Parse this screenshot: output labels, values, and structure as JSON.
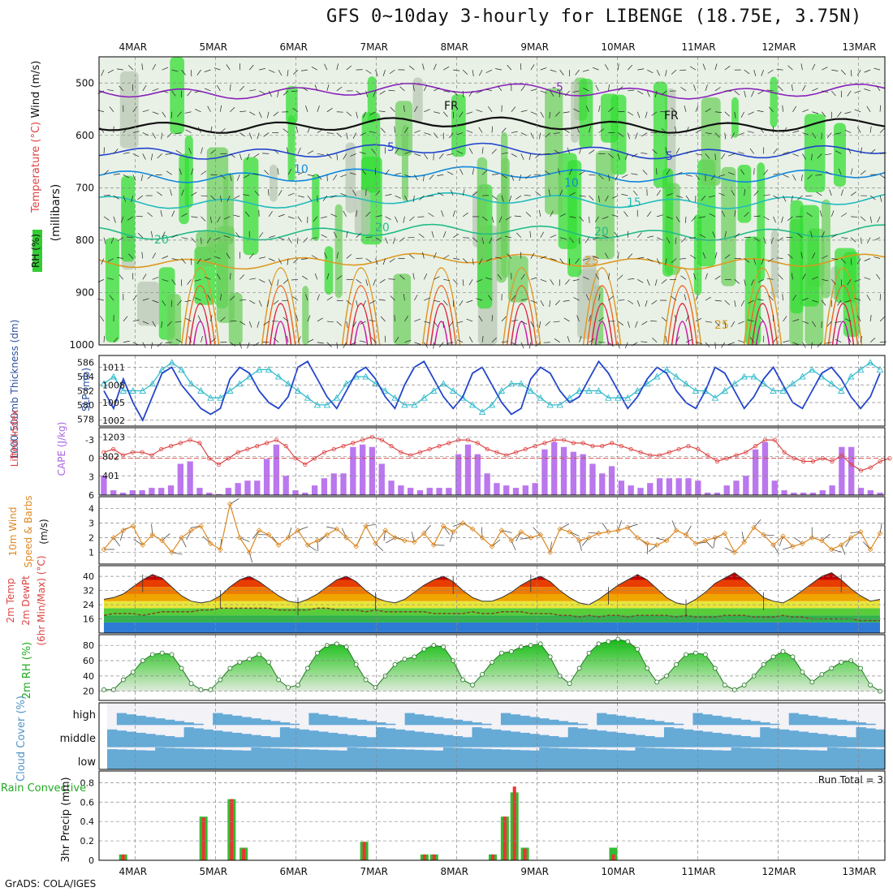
{
  "title": "GFS 0~10day 3-hourly for LIBENGE (18.75E, 3.75N)",
  "footer": "GrADS: COLA/IGES",
  "colors": {
    "precip_total": "#33bb33",
    "precip_conv": "#ee3333",
    "cape": "#bb77ee",
    "lifted": "#dd4444",
    "wind": "#dd8822",
    "slp": "#2244cc",
    "thickness": "#33bbcc",
    "cloud": "#66aad6",
    "rh_panel": "#33cc33"
  },
  "chart_data": [
    {
      "type": "area",
      "name": "upper_air_cross_section",
      "ylabel_parts": [
        "RH (%)",
        "Temperature (°C)",
        "Wind (m/s)"
      ],
      "ylabel_unit": "(millibars)",
      "yticks": [
        500,
        600,
        700,
        800,
        900,
        1000
      ],
      "ylim": [
        1000,
        450
      ],
      "x_dates": [
        "4MAR",
        "5MAR",
        "6MAR",
        "7MAR",
        "8MAR",
        "9MAR",
        "10MAR",
        "11MAR",
        "12MAR",
        "13MAR"
      ],
      "contour_labels": [
        {
          "text": "-5"
        },
        {
          "text": "FR"
        },
        {
          "text": "FR"
        },
        {
          "text": "5"
        },
        {
          "text": "5"
        },
        {
          "text": "10"
        },
        {
          "text": "10"
        },
        {
          "text": "15"
        },
        {
          "text": "20"
        },
        {
          "text": "20"
        },
        {
          "text": "20"
        },
        {
          "text": "25"
        },
        {
          "text": "25"
        }
      ],
      "isotherms": [
        {
          "level_c": -5,
          "pressure_mb": 515,
          "color": "#8822bb"
        },
        {
          "level_c": 0,
          "pressure_mb": 580,
          "color": "#111111"
        },
        {
          "level_c": 5,
          "pressure_mb": 630,
          "color": "#2244cc"
        },
        {
          "level_c": 10,
          "pressure_mb": 675,
          "color": "#1188dd"
        },
        {
          "level_c": 15,
          "pressure_mb": 725,
          "color": "#22bbbb"
        },
        {
          "level_c": 20,
          "pressure_mb": 785,
          "color": "#22bb88"
        },
        {
          "level_c": 25,
          "pressure_mb": 840,
          "color": "#dd9922"
        }
      ]
    },
    {
      "type": "line",
      "name": "slp_thickness",
      "ylabel_left": "1000-500mb Thickness (dm)",
      "ylabel_right": "SLP (mb)",
      "left_ticks": [
        586,
        584,
        582,
        580,
        578
      ],
      "right_ticks": [
        1011,
        1008,
        1005,
        1002
      ],
      "series": [
        {
          "name": "SLP",
          "axis": "right",
          "values": [
            1007,
            1004,
            1009,
            1005,
            1002,
            1006,
            1010,
            1011,
            1008,
            1006,
            1004,
            1003,
            1004,
            1009,
            1011,
            1010,
            1007,
            1005,
            1004,
            1006,
            1011,
            1012,
            1009,
            1006,
            1004,
            1007,
            1010,
            1011,
            1009,
            1006,
            1004,
            1008,
            1011,
            1012,
            1009,
            1006,
            1004,
            1006,
            1010,
            1011,
            1008,
            1005,
            1003,
            1004,
            1009,
            1011,
            1010,
            1007,
            1005,
            1006,
            1009,
            1012,
            1010,
            1007,
            1004,
            1006,
            1009,
            1011,
            1010,
            1007,
            1005,
            1004,
            1007,
            1011,
            1010,
            1007,
            1004,
            1006,
            1009,
            1011,
            1008,
            1005,
            1004,
            1007,
            1010,
            1011,
            1009,
            1006,
            1004,
            1006,
            1010
          ]
        },
        {
          "name": "1000-500mb Thickness",
          "axis": "left",
          "values": [
            583,
            584,
            582,
            582,
            582,
            583,
            585,
            586,
            585,
            583,
            582,
            581,
            581,
            582,
            583,
            584,
            585,
            585,
            584,
            583,
            582,
            581,
            580,
            580,
            581,
            583,
            584,
            584,
            583,
            582,
            581,
            580,
            580,
            581,
            582,
            583,
            582,
            581,
            580,
            579,
            580,
            582,
            583,
            583,
            582,
            581,
            580,
            580,
            581,
            582,
            582,
            582,
            581,
            581,
            581,
            582,
            583,
            584,
            585,
            584,
            583,
            582,
            582,
            581,
            582,
            583,
            584,
            584,
            583,
            582,
            582,
            583,
            584,
            585,
            584,
            583,
            582,
            584,
            585,
            586,
            585
          ]
        }
      ]
    },
    {
      "type": "bar",
      "name": "lifted_cape",
      "ylabel_left": "Lifted Index",
      "ylabel_right": "CAPE (J/kg)",
      "left_ticks": [
        -3,
        0,
        3,
        6
      ],
      "right_ticks": [
        1203,
        802,
        401
      ],
      "series": [
        {
          "name": "CAPE",
          "values": [
            400,
            100,
            50,
            100,
            100,
            150,
            150,
            200,
            650,
            700,
            150,
            50,
            20,
            150,
            250,
            300,
            300,
            750,
            1050,
            400,
            100,
            50,
            200,
            350,
            450,
            450,
            1000,
            1050,
            1000,
            650,
            300,
            200,
            150,
            100,
            150,
            150,
            150,
            850,
            1050,
            850,
            450,
            250,
            200,
            150,
            200,
            250,
            950,
            1100,
            1000,
            900,
            850,
            650,
            450,
            600,
            300,
            200,
            150,
            250,
            350,
            350,
            350,
            350,
            300,
            50,
            50,
            200,
            300,
            400,
            950,
            1100,
            300,
            100,
            50,
            50,
            50,
            100,
            200,
            1000,
            1000,
            150,
            100,
            50
          ]
        },
        {
          "name": "Lifted Index",
          "values": [
            -1,
            -1.5,
            -0.5,
            -1,
            -1,
            -0.5,
            -1.5,
            -2,
            -2.5,
            -3,
            -2.5,
            0,
            1,
            0,
            -1,
            -1.5,
            -2,
            -2.5,
            -3,
            -2,
            0,
            1,
            0,
            -1,
            -1.5,
            -2,
            -2.5,
            -3,
            -3.5,
            -3,
            -2,
            -1,
            -0.5,
            -1,
            -1.5,
            -2,
            -2.5,
            -3,
            -3,
            -2.5,
            -1.5,
            -1,
            -0.5,
            -1,
            -1.5,
            -2,
            -2.5,
            -3,
            -3,
            -2.5,
            -2.5,
            -2,
            -2,
            -2.5,
            -2,
            -1.5,
            -1,
            -0.5,
            -0.5,
            -1,
            -1.5,
            -2,
            -1.5,
            -0.5,
            0.5,
            0,
            -0.5,
            -1,
            -2,
            -3,
            -3,
            -1,
            0,
            0.5,
            0.5,
            0,
            0.5,
            -0.5,
            1,
            2,
            1.5,
            0.5,
            0
          ]
        }
      ]
    },
    {
      "type": "line",
      "name": "wind10m",
      "ylabel": "10m Wind Speed & Barbs (m/s)",
      "ylabel_parts": [
        "10m Wind",
        "Speed & Barbs",
        "(m/s)"
      ],
      "yticks": [
        1,
        2,
        3,
        4
      ],
      "values": [
        1.2,
        2,
        2.5,
        2.8,
        1.5,
        2.2,
        1.8,
        1,
        2,
        2.5,
        2.8,
        1.6,
        1.2,
        4.3,
        2,
        1,
        2.5,
        2.2,
        1.5,
        2,
        2.5,
        1.5,
        1.8,
        2.2,
        2.6,
        2,
        1.4,
        2.8,
        1.6,
        2.5,
        2,
        1.8,
        1.7,
        2.3,
        1.5,
        2.8,
        2.4,
        3,
        2.6,
        2,
        1.4,
        2.5,
        1.8,
        2.4,
        2,
        2.2,
        1,
        2.6,
        2.4,
        1.8,
        2,
        2.3,
        2.4,
        2.5,
        2.7,
        2,
        1.6,
        1.5,
        1.8,
        2.5,
        2.2,
        1.6,
        1.8,
        2,
        2.3,
        1,
        1.7,
        2.7,
        2.2,
        1.5,
        2.1,
        1.4,
        1.6,
        2,
        1.8,
        1.2,
        1.5,
        2,
        2.4,
        1.2,
        2.3
      ]
    },
    {
      "type": "area",
      "name": "temp2m",
      "ylabel_parts": [
        "2m Temp",
        "2m DewPt",
        "(6hr Min/Max) (°C)"
      ],
      "yticks": [
        16,
        24,
        32,
        40
      ],
      "temp": [
        27,
        28,
        30,
        34,
        38,
        41,
        39,
        34,
        29,
        26,
        25,
        26,
        29,
        34,
        38,
        40,
        37,
        33,
        29,
        26,
        25,
        27,
        30,
        34,
        38,
        40,
        37,
        32,
        28,
        26,
        25,
        27,
        31,
        35,
        38,
        40,
        37,
        32,
        28,
        26,
        26,
        28,
        31,
        35,
        38,
        40,
        37,
        32,
        28,
        25,
        24,
        27,
        31,
        35,
        38,
        41,
        38,
        33,
        28,
        25,
        24,
        27,
        31,
        36,
        39,
        42,
        38,
        33,
        28,
        26,
        25,
        28,
        32,
        36,
        40,
        42,
        38,
        33,
        29,
        26,
        27
      ],
      "dewpoint": [
        18,
        19,
        19,
        19,
        18,
        19,
        20,
        20,
        20,
        20,
        21,
        21,
        22,
        22,
        22,
        22,
        22,
        22,
        21,
        21,
        21,
        21,
        22,
        22,
        21,
        21,
        21,
        20,
        21,
        20,
        20,
        20,
        20,
        20,
        19,
        19,
        19,
        19,
        20,
        19,
        19,
        20,
        20,
        20,
        19,
        19,
        19,
        18,
        18,
        17,
        18,
        17,
        18,
        18,
        17,
        18,
        18,
        18,
        18,
        17,
        18,
        17,
        17,
        17,
        18,
        18,
        18,
        17,
        17,
        17,
        18,
        17,
        17,
        16,
        16,
        16,
        16,
        16,
        15,
        15,
        15
      ]
    },
    {
      "type": "area",
      "name": "rh2m",
      "ylabel": "2m RH (%)",
      "yticks": [
        20,
        40,
        60,
        80
      ],
      "values": [
        22,
        22,
        35,
        45,
        60,
        68,
        70,
        68,
        50,
        30,
        22,
        22,
        35,
        50,
        58,
        62,
        68,
        58,
        35,
        25,
        28,
        50,
        70,
        80,
        82,
        78,
        55,
        35,
        25,
        40,
        55,
        62,
        65,
        75,
        80,
        78,
        60,
        35,
        28,
        42,
        58,
        70,
        72,
        78,
        80,
        82,
        65,
        40,
        30,
        50,
        70,
        82,
        85,
        88,
        85,
        75,
        50,
        32,
        40,
        55,
        68,
        70,
        68,
        50,
        28,
        22,
        28,
        40,
        55,
        65,
        72,
        65,
        45,
        32,
        42,
        50,
        58,
        60,
        50,
        28,
        20
      ]
    },
    {
      "type": "heatmap",
      "name": "cloud_cover",
      "ylabel": "Cloud Cover (%)",
      "levels": [
        "high",
        "middle",
        "low"
      ]
    },
    {
      "type": "bar",
      "name": "precip",
      "ylabel_left": "Total / Rain Convective",
      "ylabel_right": "3hr Precip (mm)",
      "yticks": [
        0,
        0.2,
        0.4,
        0.6,
        0.8
      ],
      "run_total": "Run Total = 3",
      "x_dates": [
        "4MAR",
        "5MAR",
        "6MAR",
        "7MAR",
        "8MAR",
        "9MAR",
        "10MAR",
        "11MAR",
        "12MAR",
        "13MAR"
      ],
      "bars": [
        {
          "day": 3.85,
          "total": 0.06,
          "conv": 0.06
        },
        {
          "day": 4.85,
          "total": 0.45,
          "conv": 0.44
        },
        {
          "day": 5.2,
          "total": 0.63,
          "conv": 0.63
        },
        {
          "day": 5.35,
          "total": 0.13,
          "conv": 0.12
        },
        {
          "day": 6.85,
          "total": 0.19,
          "conv": 0.19
        },
        {
          "day": 7.6,
          "total": 0.06,
          "conv": 0.06
        },
        {
          "day": 7.72,
          "total": 0.06,
          "conv": 0.06
        },
        {
          "day": 8.45,
          "total": 0.06,
          "conv": 0.06
        },
        {
          "day": 8.6,
          "total": 0.45,
          "conv": 0.45
        },
        {
          "day": 8.72,
          "total": 0.7,
          "conv": 0.76
        },
        {
          "day": 8.85,
          "total": 0.13,
          "conv": 0.12
        },
        {
          "day": 9.95,
          "total": 0.13,
          "conv": 0.06
        }
      ]
    }
  ]
}
